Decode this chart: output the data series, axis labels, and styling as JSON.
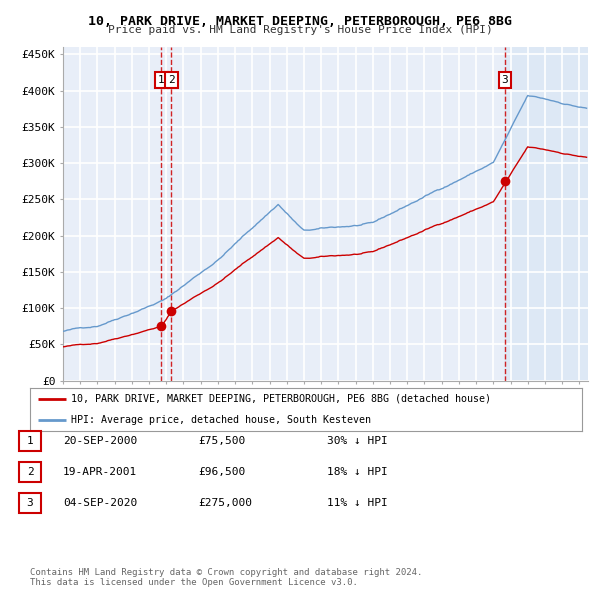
{
  "title": "10, PARK DRIVE, MARKET DEEPING, PETERBOROUGH, PE6 8BG",
  "subtitle": "Price paid vs. HM Land Registry's House Price Index (HPI)",
  "legend_label_red": "10, PARK DRIVE, MARKET DEEPING, PETERBOROUGH, PE6 8BG (detached house)",
  "legend_label_blue": "HPI: Average price, detached house, South Kesteven",
  "footer1": "Contains HM Land Registry data © Crown copyright and database right 2024.",
  "footer2": "This data is licensed under the Open Government Licence v3.0.",
  "transactions": [
    {
      "num": 1,
      "date": "20-SEP-2000",
      "price": "£75,500",
      "hpi": "30% ↓ HPI",
      "year": 2000.72,
      "value": 75500
    },
    {
      "num": 2,
      "date": "19-APR-2001",
      "price": "£96,500",
      "hpi": "18% ↓ HPI",
      "year": 2001.3,
      "value": 96500
    },
    {
      "num": 3,
      "date": "04-SEP-2020",
      "price": "£275,000",
      "hpi": "11% ↓ HPI",
      "year": 2020.68,
      "value": 275000
    }
  ],
  "vline1_year": 2000.72,
  "vline2_year": 2001.3,
  "vline3_year": 2020.68,
  "shade_start": 2020.68,
  "shade_end": 2025.5,
  "xlim": [
    1995.0,
    2025.5
  ],
  "ylim": [
    0,
    460000
  ],
  "yticks": [
    0,
    50000,
    100000,
    150000,
    200000,
    250000,
    300000,
    350000,
    400000,
    450000
  ],
  "ytick_labels": [
    "£0",
    "£50K",
    "£100K",
    "£150K",
    "£200K",
    "£250K",
    "£300K",
    "£350K",
    "£400K",
    "£450K"
  ],
  "background_color": "#e8eef8",
  "red_color": "#cc0000",
  "blue_color": "#6699cc",
  "grid_color": "#ffffff",
  "vline_color": "#cc0000",
  "shade_color": "#dde8f5"
}
